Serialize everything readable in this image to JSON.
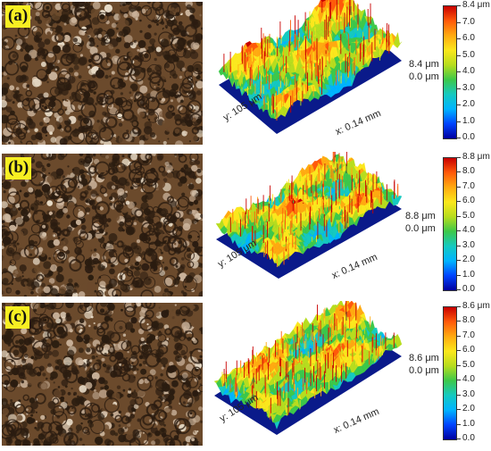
{
  "colorbar_colors": [
    "#0000a0",
    "#0044ff",
    "#00b4ff",
    "#15c9c0",
    "#3dc84a",
    "#b7dd1e",
    "#fbe71c",
    "#ffaa10",
    "#ff5a0a",
    "#c80000"
  ],
  "micro_colors": {
    "dark": "#2a1c10",
    "mid": "#6b4a2c",
    "light": "#c9b29a",
    "bright": "#e8dcc8"
  },
  "panels": [
    {
      "id": "a",
      "badge": "(a)",
      "y_axis": "y: 105 μm",
      "x_axis": "x: 0.14 mm",
      "z_top": "8.4 μm",
      "z_bottom": "0.0 μm",
      "cbar_ticks": [
        "8.4 μm",
        "7.0",
        "6.0",
        "5.0",
        "4.0",
        "3.0",
        "2.0",
        "1.0",
        "0.0"
      ]
    },
    {
      "id": "b",
      "badge": "(b)",
      "y_axis": "y: 105 μm",
      "x_axis": "x: 0.14 mm",
      "z_top": "8.8 μm",
      "z_bottom": "0.0 μm",
      "cbar_ticks": [
        "8.8 μm",
        "8.0",
        "7.0",
        "6.0",
        "5.0",
        "4.0",
        "3.0",
        "2.0",
        "1.0",
        "0.0"
      ]
    },
    {
      "id": "c",
      "badge": "(c)",
      "y_axis": "y: 105 μm",
      "x_axis": "x: 0.14 mm",
      "z_top": "8.6 μm",
      "z_bottom": "0.0 μm",
      "cbar_ticks": [
        "8.6 μm",
        "8.0",
        "7.0",
        "6.0",
        "5.0",
        "4.0",
        "3.0",
        "2.0",
        "1.0",
        "0.0"
      ]
    }
  ]
}
